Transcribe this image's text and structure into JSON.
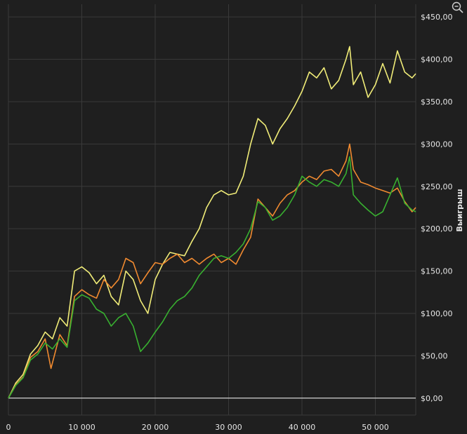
{
  "chart_data": {
    "type": "line",
    "title": "",
    "xlabel": "",
    "ylabel": "Выигрыш",
    "xlim": [
      0,
      55500
    ],
    "ylim": [
      -20,
      465
    ],
    "grid": true,
    "legend": "none",
    "x_ticks": [
      {
        "value": 0,
        "label": "0"
      },
      {
        "value": 10000,
        "label": "10 000"
      },
      {
        "value": 20000,
        "label": "20 000"
      },
      {
        "value": 30000,
        "label": "30 000"
      },
      {
        "value": 40000,
        "label": "40 000"
      },
      {
        "value": 50000,
        "label": "50 000"
      }
    ],
    "y_ticks": [
      {
        "value": 0,
        "label": "$0,00"
      },
      {
        "value": 50,
        "label": "$50,00"
      },
      {
        "value": 100,
        "label": "$100,00"
      },
      {
        "value": 150,
        "label": "$150,00"
      },
      {
        "value": 200,
        "label": "$200,00"
      },
      {
        "value": 250,
        "label": "$250,00"
      },
      {
        "value": 300,
        "label": "$300,00"
      },
      {
        "value": 350,
        "label": "$350,00"
      },
      {
        "value": 400,
        "label": "$400,00"
      },
      {
        "value": 450,
        "label": "$450,00"
      }
    ],
    "series": [
      {
        "color": "#f0ec78",
        "x": [
          0,
          1000,
          2000,
          3000,
          4000,
          5000,
          6000,
          7000,
          8000,
          9000,
          10000,
          11000,
          12000,
          13000,
          14000,
          15000,
          16000,
          17000,
          18000,
          19000,
          20000,
          21000,
          22000,
          23000,
          24000,
          25000,
          26000,
          27000,
          28000,
          29000,
          30000,
          31000,
          32000,
          33000,
          34000,
          35000,
          36000,
          37000,
          38000,
          39000,
          40000,
          41000,
          42000,
          43000,
          44000,
          45000,
          46000,
          46500,
          47000,
          48000,
          49000,
          50000,
          51000,
          52000,
          53000,
          54000,
          55000,
          55500
        ],
        "y": [
          0,
          18,
          28,
          52,
          62,
          78,
          70,
          95,
          85,
          150,
          155,
          148,
          135,
          145,
          120,
          110,
          150,
          140,
          115,
          100,
          140,
          158,
          172,
          170,
          168,
          185,
          200,
          225,
          240,
          245,
          240,
          242,
          262,
          300,
          330,
          322,
          300,
          318,
          330,
          345,
          362,
          385,
          378,
          390,
          365,
          375,
          400,
          415,
          370,
          385,
          355,
          370,
          395,
          372,
          410,
          385,
          378,
          383
        ]
      },
      {
        "color": "#f08a30",
        "x": [
          0,
          1000,
          2000,
          3000,
          4000,
          5000,
          5800,
          7000,
          8000,
          9000,
          10000,
          11000,
          12000,
          13000,
          14000,
          15000,
          16000,
          17000,
          18000,
          19000,
          20000,
          21000,
          22000,
          23000,
          24000,
          25000,
          26000,
          27000,
          28000,
          29000,
          30000,
          31000,
          32000,
          33000,
          34000,
          35000,
          36000,
          37000,
          38000,
          39000,
          40000,
          41000,
          42000,
          43000,
          44000,
          45000,
          46000,
          46500,
          47000,
          48000,
          49000,
          50000,
          51000,
          52000,
          53000,
          54000,
          55000,
          55500
        ],
        "y": [
          0,
          16,
          25,
          48,
          55,
          70,
          35,
          75,
          62,
          120,
          128,
          122,
          118,
          140,
          130,
          140,
          165,
          160,
          135,
          148,
          160,
          158,
          165,
          170,
          160,
          165,
          158,
          165,
          170,
          160,
          165,
          158,
          175,
          190,
          235,
          225,
          215,
          230,
          240,
          245,
          255,
          262,
          258,
          268,
          270,
          262,
          280,
          300,
          270,
          255,
          252,
          248,
          245,
          242,
          248,
          232,
          220,
          225
        ]
      },
      {
        "color": "#38b030",
        "x": [
          0,
          1000,
          2000,
          3000,
          4000,
          5000,
          6000,
          7000,
          8000,
          9000,
          10000,
          11000,
          12000,
          13000,
          14000,
          15000,
          16000,
          17000,
          18000,
          19000,
          20000,
          21000,
          22000,
          23000,
          24000,
          25000,
          26000,
          27000,
          28000,
          29000,
          30000,
          31000,
          32000,
          33000,
          34000,
          35000,
          36000,
          37000,
          38000,
          39000,
          40000,
          41000,
          42000,
          43000,
          44000,
          45000,
          46000,
          46500,
          47000,
          48000,
          49000,
          50000,
          51000,
          52000,
          53000,
          54000,
          55000,
          55500
        ],
        "y": [
          0,
          15,
          24,
          45,
          52,
          65,
          58,
          70,
          60,
          115,
          122,
          118,
          105,
          100,
          85,
          95,
          100,
          85,
          55,
          65,
          78,
          90,
          105,
          115,
          120,
          130,
          145,
          155,
          165,
          168,
          165,
          172,
          182,
          200,
          232,
          225,
          210,
          215,
          225,
          240,
          262,
          255,
          250,
          258,
          255,
          250,
          265,
          285,
          240,
          230,
          222,
          215,
          220,
          240,
          260,
          230,
          222,
          220
        ]
      }
    ]
  },
  "toolbar": {
    "zoom_icon": "zoom-out-magnifier-icon"
  }
}
